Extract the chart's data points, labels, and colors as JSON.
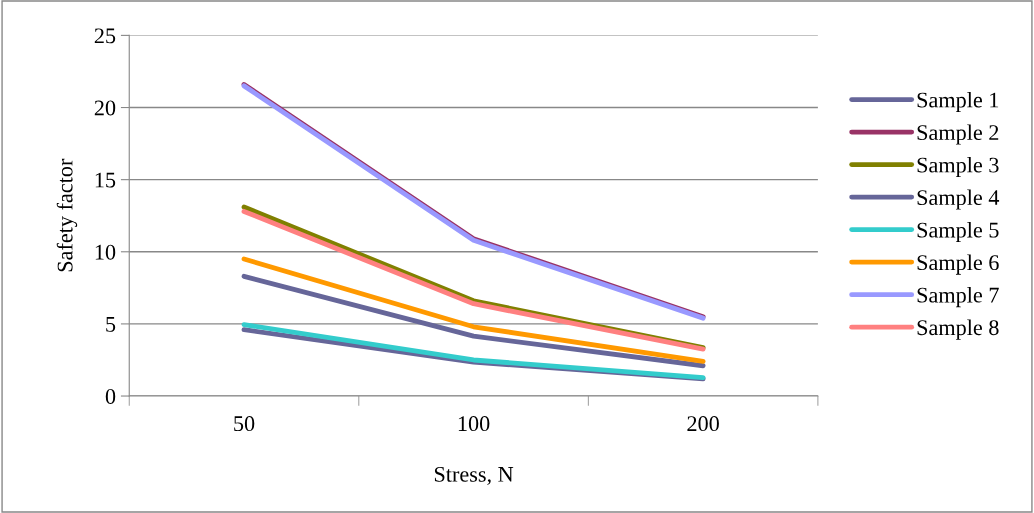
{
  "chart_data": {
    "type": "line",
    "xlabel": "Stress, N",
    "ylabel": "Safety factor",
    "categories": [
      "50",
      "100",
      "200"
    ],
    "series": [
      {
        "name": "Sample 1",
        "color": "#666699",
        "values": [
          4.6,
          2.35,
          1.2
        ]
      },
      {
        "name": "Sample 2",
        "color": "#993366",
        "values": [
          21.6,
          10.9,
          5.5
        ]
      },
      {
        "name": "Sample 3",
        "color": "#808000",
        "values": [
          13.1,
          6.6,
          3.35
        ]
      },
      {
        "name": "Sample 4",
        "color": "#666699",
        "values": [
          8.3,
          4.15,
          2.1
        ]
      },
      {
        "name": "Sample 5",
        "color": "#33cccc",
        "values": [
          4.95,
          2.5,
          1.28
        ]
      },
      {
        "name": "Sample 6",
        "color": "#ff9900",
        "values": [
          9.5,
          4.8,
          2.4
        ]
      },
      {
        "name": "Sample 7",
        "color": "#9999ff",
        "values": [
          21.5,
          10.8,
          5.4
        ]
      },
      {
        "name": "Sample 8",
        "color": "#ff8080",
        "values": [
          12.8,
          6.4,
          3.25
        ]
      }
    ],
    "ylim": [
      0,
      25
    ],
    "yticks": [
      0,
      5,
      10,
      15,
      20,
      25
    ],
    "grid": "y",
    "legend": "right",
    "marker": "none",
    "line_style": "solid"
  }
}
